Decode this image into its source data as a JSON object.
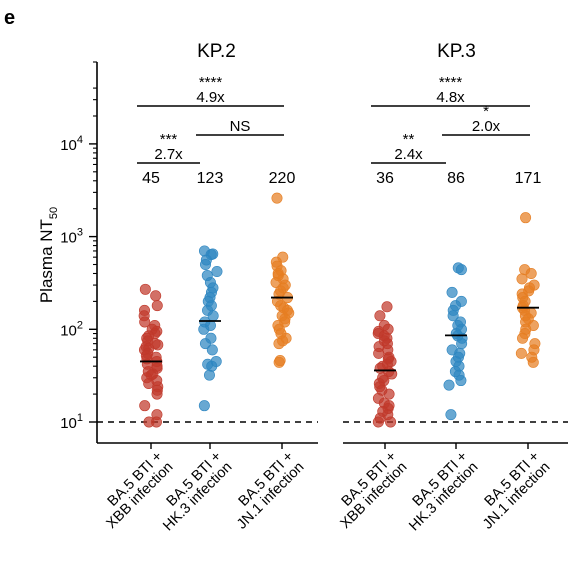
{
  "panel_letter": "e",
  "chart_data": {
    "type": "scatter",
    "ylabel": "Plasma NT50",
    "ylabel_main": "Plasma NT",
    "ylabel_sub": "50",
    "yscale": "log",
    "ylim": [
      8,
      50000
    ],
    "yticks": [
      {
        "value": 10,
        "base": "10",
        "exp": "1"
      },
      {
        "value": 100,
        "base": "10",
        "exp": "2"
      },
      {
        "value": 1000,
        "base": "10",
        "exp": "3"
      },
      {
        "value": 10000,
        "base": "10",
        "exp": "4"
      }
    ],
    "detection_limit": 10,
    "colors": {
      "XBB": "#c0392b",
      "HK3": "#2e86c1",
      "JN1": "#e67e22"
    },
    "categories": [
      {
        "line1": "BA.5 BTI +",
        "line2": "XBB infection"
      },
      {
        "line1": "BA.5 BTI +",
        "line2": "HK.3 infection"
      },
      {
        "line1": "BA.5 BTI +",
        "line2": "JN.1 infection"
      }
    ],
    "panels": [
      {
        "title": "KP.2",
        "groups": [
          {
            "name": "XBB",
            "geomean_label": "45",
            "geomean": 45,
            "values": [
              270,
              230,
              180,
              160,
              140,
              120,
              110,
              100,
              95,
              90,
              85,
              80,
              75,
              70,
              68,
              65,
              62,
              60,
              55,
              52,
              50,
              48,
              45,
              42,
              40,
              38,
              35,
              33,
              32,
              30,
              28,
              26,
              24,
              22,
              20,
              15,
              12,
              10,
              10
            ]
          },
          {
            "name": "HK3",
            "geomean_label": "123",
            "geomean": 123,
            "values": [
              700,
              650,
              640,
              560,
              500,
              420,
              380,
              320,
              280,
              250,
              220,
              200,
              180,
              160,
              140,
              120,
              110,
              100,
              80,
              70,
              60,
              45,
              42,
              40,
              32,
              15
            ]
          },
          {
            "name": "JN1",
            "geomean_label": "220",
            "geomean": 220,
            "values": [
              2600,
              600,
              530,
              480,
              430,
              400,
              380,
              350,
              320,
              300,
              280,
              260,
              240,
              220,
              200,
              180,
              170,
              160,
              150,
              140,
              130,
              120,
              110,
              100,
              90,
              80,
              75,
              70,
              46,
              44
            ]
          }
        ],
        "comparisons": [
          {
            "from": 0,
            "to": 2,
            "sig": "****",
            "fold": "4.9x",
            "level": 3
          },
          {
            "from": 1,
            "to": 2,
            "sig": "",
            "fold": "NS",
            "level": 2
          },
          {
            "from": 0,
            "to": 1,
            "sig": "***",
            "fold": "2.7x",
            "level": 1
          }
        ]
      },
      {
        "title": "KP.3",
        "groups": [
          {
            "name": "XBB",
            "geomean_label": "36",
            "geomean": 36,
            "values": [
              175,
              140,
              110,
              100,
              95,
              90,
              85,
              80,
              75,
              70,
              65,
              60,
              55,
              50,
              48,
              45,
              42,
              40,
              38,
              35,
              33,
              30,
              28,
              26,
              24,
              22,
              20,
              18,
              16,
              15,
              14,
              13,
              12,
              11,
              10,
              10
            ]
          },
          {
            "name": "HK3",
            "geomean_label": "86",
            "geomean": 86,
            "values": [
              460,
              440,
              250,
              200,
              180,
              160,
              140,
              120,
              110,
              100,
              90,
              85,
              80,
              70,
              60,
              55,
              50,
              45,
              40,
              35,
              32,
              28,
              25,
              12
            ]
          },
          {
            "name": "JN1",
            "geomean_label": "171",
            "geomean": 171,
            "values": [
              1600,
              440,
              400,
              350,
              300,
              280,
              260,
              240,
              220,
              200,
              180,
              170,
              160,
              150,
              140,
              130,
              120,
              110,
              100,
              90,
              80,
              70,
              60,
              55,
              50,
              44
            ]
          }
        ],
        "comparisons": [
          {
            "from": 0,
            "to": 2,
            "sig": "****",
            "fold": "4.8x",
            "level": 3
          },
          {
            "from": 1,
            "to": 2,
            "sig": "*",
            "fold": "2.0x",
            "level": 2
          },
          {
            "from": 0,
            "to": 1,
            "sig": "**",
            "fold": "2.4x",
            "level": 1
          }
        ]
      }
    ]
  }
}
